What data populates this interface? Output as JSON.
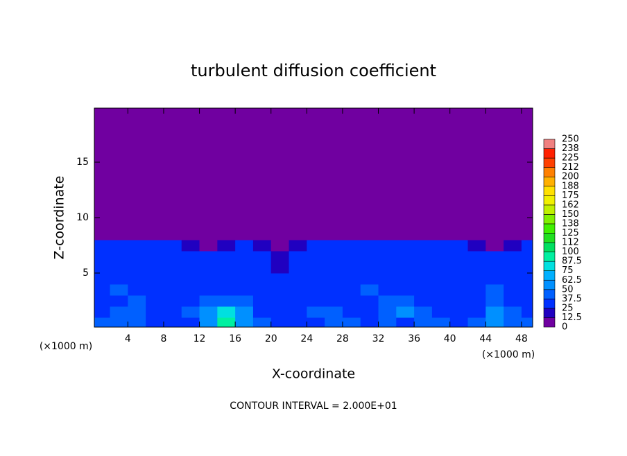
{
  "chart_data": {
    "type": "heatmap",
    "title": "turbulent diffusion coefficient",
    "xlabel": "X-coordinate",
    "ylabel": "Z-coordinate",
    "x_unit": "(×1000 m)",
    "footer": "CONTOUR INTERVAL = 2.000E+01",
    "xlim": [
      0.25,
      49.25
    ],
    "ylim": [
      0.125,
      19.875
    ],
    "xticks": [
      4,
      8,
      12,
      16,
      20,
      24,
      28,
      32,
      36,
      40,
      44,
      48
    ],
    "yticks": [
      5,
      10,
      15
    ],
    "background": "#7000a0",
    "x": [
      1,
      3,
      5,
      7,
      9,
      11,
      13,
      15,
      17,
      19,
      21,
      23,
      25,
      27,
      29,
      31,
      33,
      35,
      37,
      39,
      41,
      43,
      45,
      47,
      49
    ],
    "y": [
      0.5,
      1.5,
      2.5,
      3.5,
      4.5,
      5.5,
      6.5,
      7.5,
      8.5
    ],
    "z": [
      [
        40,
        45,
        40,
        35,
        30,
        35,
        60,
        95,
        60,
        40,
        35,
        30,
        35,
        45,
        40,
        35,
        40,
        35,
        45,
        40,
        35,
        40,
        60,
        45,
        40
      ],
      [
        35,
        40,
        45,
        35,
        35,
        40,
        50,
        80,
        55,
        35,
        30,
        35,
        40,
        40,
        35,
        30,
        45,
        50,
        40,
        35,
        35,
        35,
        55,
        40,
        35
      ],
      [
        30,
        35,
        40,
        35,
        30,
        35,
        40,
        45,
        40,
        30,
        30,
        30,
        35,
        35,
        30,
        35,
        40,
        40,
        35,
        30,
        35,
        30,
        45,
        35,
        30
      ],
      [
        30,
        40,
        35,
        30,
        30,
        30,
        35,
        30,
        35,
        30,
        25,
        30,
        30,
        30,
        35,
        40,
        35,
        30,
        30,
        30,
        30,
        35,
        40,
        30,
        30
      ],
      [
        30,
        35,
        30,
        30,
        25,
        30,
        30,
        30,
        35,
        25,
        25,
        30,
        30,
        30,
        35,
        35,
        30,
        30,
        30,
        35,
        30,
        30,
        35,
        30,
        30
      ],
      [
        35,
        30,
        30,
        30,
        25,
        30,
        25,
        30,
        30,
        25,
        20,
        30,
        30,
        35,
        30,
        30,
        30,
        35,
        30,
        30,
        35,
        30,
        30,
        30,
        30
      ],
      [
        30,
        35,
        30,
        30,
        25,
        25,
        25,
        30,
        30,
        25,
        15,
        25,
        30,
        30,
        30,
        30,
        30,
        30,
        35,
        30,
        35,
        30,
        25,
        30,
        30
      ],
      [
        30,
        30,
        30,
        30,
        25,
        15,
        10,
        20,
        25,
        20,
        10,
        20,
        25,
        25,
        30,
        30,
        30,
        30,
        30,
        30,
        25,
        15,
        10,
        20,
        25
      ],
      [
        5,
        10,
        10,
        5,
        0,
        0,
        0,
        0,
        0,
        0,
        0,
        0,
        0,
        5,
        5,
        5,
        10,
        10,
        5,
        5,
        0,
        0,
        0,
        0,
        0
      ]
    ],
    "colorbar": {
      "levels": [
        0,
        12.5,
        25,
        37.5,
        50,
        62.5,
        75,
        87.5,
        100,
        112,
        125,
        138,
        150,
        162,
        175,
        188,
        200,
        212,
        225,
        238,
        250
      ],
      "colors": [
        "#7000a0",
        "#2000c0",
        "#0030ff",
        "#0060ff",
        "#0090ff",
        "#00b0ff",
        "#00e0e0",
        "#00f0a0",
        "#00e060",
        "#20e020",
        "#40f000",
        "#80f000",
        "#c0f000",
        "#f0f000",
        "#ffe000",
        "#ffb000",
        "#ff8000",
        "#ff4000",
        "#ff2000",
        "#f08080"
      ]
    }
  }
}
